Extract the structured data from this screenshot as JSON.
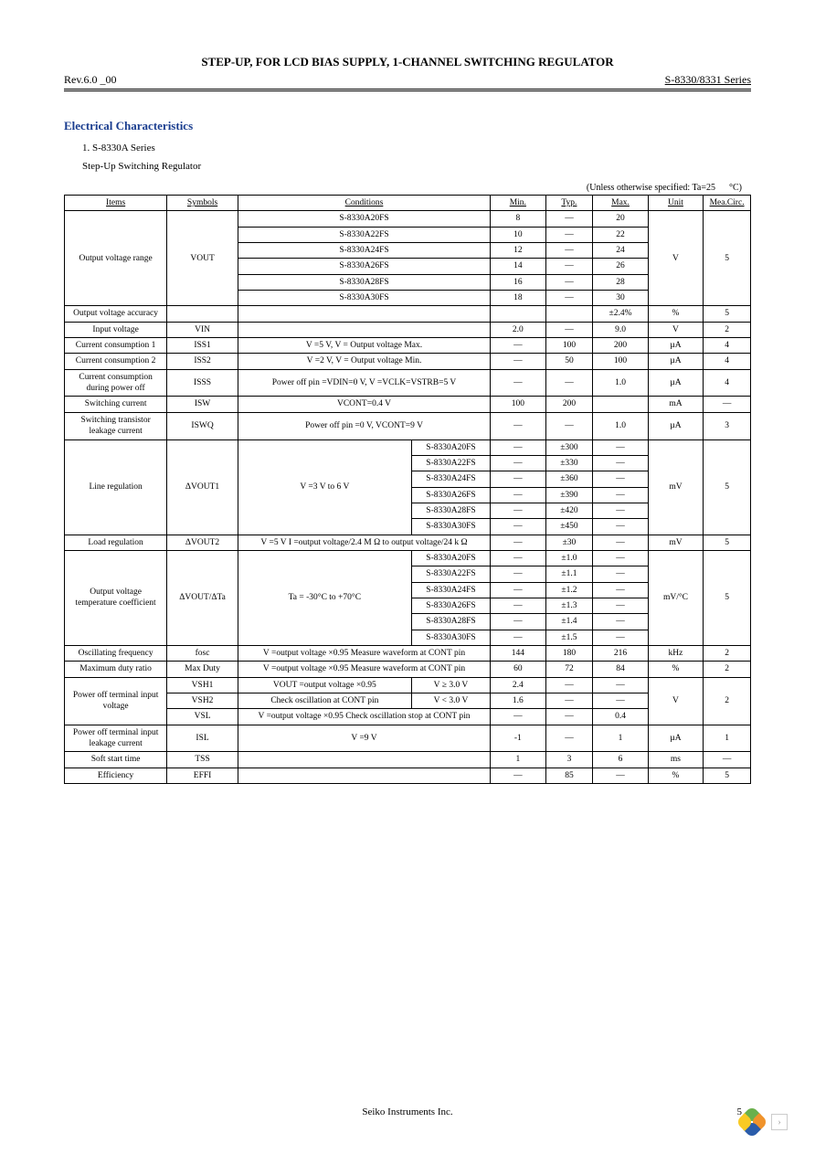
{
  "header": {
    "title": "STEP-UP, FOR LCD BIAS SUPPLY, 1-CHANNEL SWITCHING REGULATOR",
    "rev": "Rev.6.0    _00",
    "series": "S-8330/8331 Series"
  },
  "section": {
    "title": "Electrical Characteristics",
    "sub1": "1. S-8330A Series",
    "sub2": "Step-Up Switching Regulator",
    "note": "(Unless otherwise specified: Ta=25",
    "note_unit": "°C)"
  },
  "th": {
    "items": "Items",
    "symbols": "Symbols",
    "conditions": "Conditions",
    "min": "Min.",
    "typ": "Typ.",
    "max": "Max.",
    "unit": "Unit",
    "circ": "Mea.Circ."
  },
  "rows": {
    "ovr": {
      "item": "Output voltage range",
      "sym": "VOUT",
      "unit": "V",
      "circ": "5",
      "parts": [
        "S-8330A20FS",
        "S-8330A22FS",
        "S-8330A24FS",
        "S-8330A26FS",
        "S-8330A28FS",
        "S-8330A30FS"
      ],
      "min": [
        "8",
        "10",
        "12",
        "14",
        "16",
        "18"
      ],
      "typ": [
        "—",
        "—",
        "—",
        "—",
        "—",
        "—"
      ],
      "max": [
        "20",
        "22",
        "24",
        "26",
        "28",
        "30"
      ]
    },
    "acc": {
      "item": "Output voltage accuracy",
      "sym": "",
      "cond": "",
      "min": "",
      "typ": "",
      "max": "±2.4%",
      "unit": "%",
      "circ": "5"
    },
    "vin": {
      "item": "Input voltage",
      "sym": "VIN",
      "cond": "",
      "min": "2.0",
      "typ": "—",
      "max": "9.0",
      "unit": "V",
      "circ": "2"
    },
    "iss1": {
      "item": "Current consumption 1",
      "sym": "ISS1",
      "cond": "V    =5 V, V         = Output voltage Max.",
      "min": "—",
      "typ": "100",
      "max": "200",
      "unit": "µA",
      "circ": "4"
    },
    "iss2": {
      "item": "Current consumption 2",
      "sym": "ISS2",
      "cond": "V    =2 V, V         = Output voltage Min.",
      "min": "—",
      "typ": "50",
      "max": "100",
      "unit": "µA",
      "circ": "4"
    },
    "isss": {
      "item": "Current consumption during power off",
      "sym": "ISSS",
      "cond": "Power off pin =VDIN=0 V, V       =VCLK=VSTRB=5 V",
      "min": "—",
      "typ": "—",
      "max": "1.0",
      "unit": "µA",
      "circ": "4"
    },
    "isw": {
      "item": "Switching current",
      "sym": "ISW",
      "cond": "VCONT=0.4 V",
      "min": "100",
      "typ": "200",
      "max": "",
      "unit": "mA",
      "circ": "—"
    },
    "iswq": {
      "item": "Switching transistor leakage current",
      "sym": "ISWQ",
      "cond": "Power off pin =0 V, VCONT=9 V",
      "min": "—",
      "typ": "—",
      "max": "1.0",
      "unit": "µA",
      "circ": "3"
    },
    "line": {
      "item": "Line regulation",
      "sym": "ΔVOUT1",
      "cond": "V    =3 V to 6 V",
      "unit": "mV",
      "circ": "5",
      "parts": [
        "S-8330A20FS",
        "S-8330A22FS",
        "S-8330A24FS",
        "S-8330A26FS",
        "S-8330A28FS",
        "S-8330A30FS"
      ],
      "min": [
        "—",
        "—",
        "—",
        "—",
        "—",
        "—"
      ],
      "typ": [
        "±300",
        "±330",
        "±360",
        "±390",
        "±420",
        "±450"
      ],
      "max": [
        "—",
        "—",
        "—",
        "—",
        "—",
        "—"
      ]
    },
    "load": {
      "item": "Load regulation",
      "sym": "ΔVOUT2",
      "cond": "V    =5 V\nI     =output voltage/2.4 M      Ω to output voltage/24 k       Ω",
      "min": "—",
      "typ": "±30",
      "max": "—",
      "unit": "mV",
      "circ": "5"
    },
    "tc": {
      "item": "Output voltage temperature coefficient",
      "sym": "ΔVOUT/ΔTa",
      "cond": "Ta = -30°C to +70°C",
      "unit": "mV/°C",
      "circ": "5",
      "parts": [
        "S-8330A20FS",
        "S-8330A22FS",
        "S-8330A24FS",
        "S-8330A26FS",
        "S-8330A28FS",
        "S-8330A30FS"
      ],
      "min": [
        "—",
        "—",
        "—",
        "—",
        "—",
        "—"
      ],
      "typ": [
        "±1.0",
        "±1.1",
        "±1.2",
        "±1.3",
        "±1.4",
        "±1.5"
      ],
      "max": [
        "—",
        "—",
        "—",
        "—",
        "—",
        "—"
      ]
    },
    "fosc": {
      "item": "Oscillating frequency",
      "sym": "fosc",
      "cond": "V      =output voltage      ×0.95\nMeasure waveform at CONT pin",
      "min": "144",
      "typ": "180",
      "max": "216",
      "unit": "kHz",
      "circ": "2"
    },
    "duty": {
      "item": "Maximum duty ratio",
      "sym": "Max Duty",
      "cond": "V      =output voltage      ×0.95\nMeasure waveform at CONT pin",
      "min": "60",
      "typ": "72",
      "max": "84",
      "unit": "%",
      "circ": "2"
    },
    "vsh1": {
      "item": "",
      "sym": "VSH1",
      "cond": "VOUT =output voltage      ×0.95",
      "cond2": "V    ≥ 3.0 V",
      "min": "2.4",
      "typ": "—",
      "max": "—"
    },
    "vsh2": {
      "item": "Power off terminal input voltage",
      "sym": "VSH2",
      "cond": "Check oscillation at CONT pin",
      "cond2": "V    < 3.0 V",
      "min": "1.6",
      "typ": "—",
      "max": "—",
      "unit": "V",
      "circ": "2"
    },
    "vsl": {
      "item": "",
      "sym": "VSL",
      "cond": "V      =output voltage      ×0.95\nCheck oscillation stop at CONT pin",
      "min": "—",
      "typ": "—",
      "max": "0.4"
    },
    "isl": {
      "item": "Power off terminal input leakage current",
      "sym": "ISL",
      "cond": "V    =9 V",
      "min": "-1",
      "typ": "—",
      "max": "1",
      "unit": "µA",
      "circ": "1"
    },
    "tss": {
      "item": "Soft start time",
      "sym": "TSS",
      "cond": "",
      "min": "1",
      "typ": "3",
      "max": "6",
      "unit": "ms",
      "circ": "—"
    },
    "eff": {
      "item": "Efficiency",
      "sym": "EFFI",
      "cond": "",
      "min": "—",
      "typ": "85",
      "max": "—",
      "unit": "%",
      "circ": "5"
    }
  },
  "footer": {
    "company": "Seiko Instruments Inc.",
    "page": "5"
  }
}
